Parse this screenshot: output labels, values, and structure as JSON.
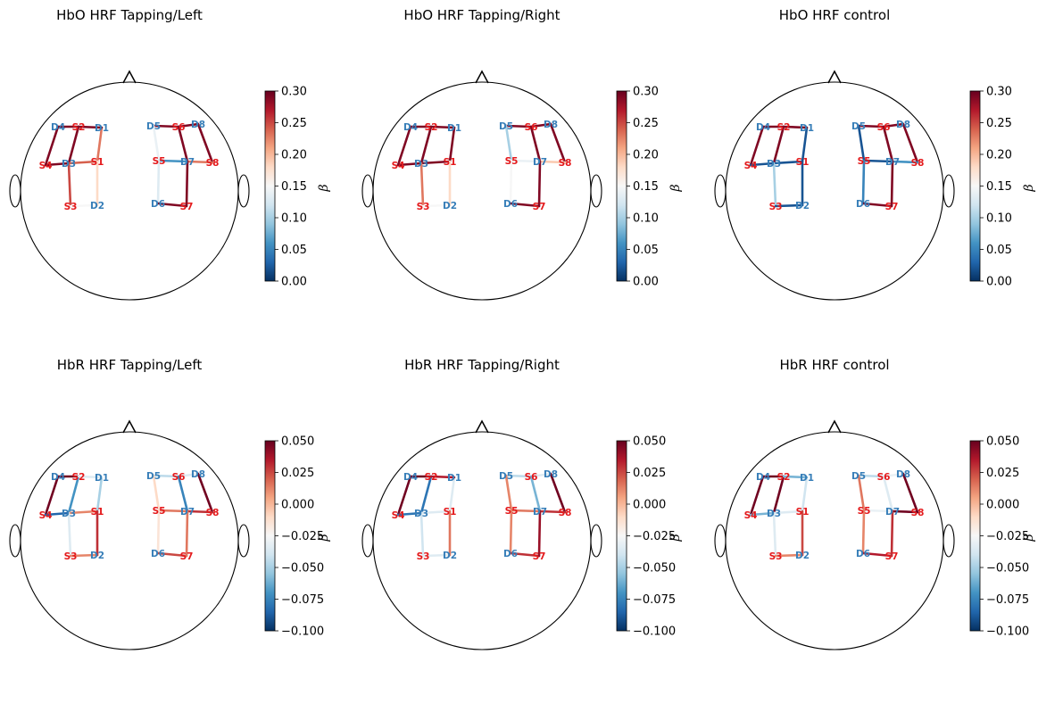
{
  "colors": {
    "source": "#e41a1c",
    "detector": "#377eb8",
    "outline": "#000000"
  },
  "colormap": {
    "name": "RdBu_r",
    "stops": [
      "#053061",
      "#2166ac",
      "#4393c3",
      "#92c5de",
      "#d1e5f0",
      "#f7f7f7",
      "#fddbc7",
      "#f4a582",
      "#d6604d",
      "#b2182b",
      "#67001f"
    ]
  },
  "optode_names": {
    "S1": "S1",
    "S2": "S2",
    "S3": "S3",
    "S4": "S4",
    "S5": "S5",
    "S6": "S6",
    "S7": "S7",
    "S8": "S8",
    "D1": "D1",
    "D2": "D2",
    "D3": "D3",
    "D4": "D4",
    "D5": "D5",
    "D6": "D6",
    "D7": "D7",
    "D8": "D8"
  },
  "chart_data": [
    {
      "type": "topomap",
      "title": "HbO HRF Tapping/Left",
      "colorbar": {
        "label": "β",
        "range": [
          0.0,
          0.3
        ],
        "ticks": [
          "0.00",
          "0.05",
          "0.10",
          "0.15",
          "0.20",
          "0.25",
          "0.30"
        ]
      },
      "channels": [
        {
          "pair": [
            "S2",
            "D4"
          ],
          "value": 0.29
        },
        {
          "pair": [
            "S4",
            "D4"
          ],
          "value": 0.29
        },
        {
          "pair": [
            "S2",
            "D3"
          ],
          "value": 0.29
        },
        {
          "pair": [
            "S4",
            "D3"
          ],
          "value": 0.29
        },
        {
          "pair": [
            "S1",
            "D3"
          ],
          "value": 0.24
        },
        {
          "pair": [
            "S1",
            "D1"
          ],
          "value": 0.23
        },
        {
          "pair": [
            "S2",
            "D1"
          ],
          "value": 0.29
        },
        {
          "pair": [
            "S3",
            "D3"
          ],
          "value": 0.25
        },
        {
          "pair": [
            "S3",
            "D2"
          ],
          "value": 0.15
        },
        {
          "pair": [
            "S1",
            "D2"
          ],
          "value": 0.18
        },
        {
          "pair": [
            "S6",
            "D5"
          ],
          "value": 0.29
        },
        {
          "pair": [
            "S6",
            "D8"
          ],
          "value": 0.29
        },
        {
          "pair": [
            "S6",
            "D7"
          ],
          "value": 0.29
        },
        {
          "pair": [
            "S5",
            "D5"
          ],
          "value": 0.14
        },
        {
          "pair": [
            "S5",
            "D7"
          ],
          "value": 0.06
        },
        {
          "pair": [
            "S8",
            "D8"
          ],
          "value": 0.29
        },
        {
          "pair": [
            "S8",
            "D7"
          ],
          "value": 0.23
        },
        {
          "pair": [
            "S5",
            "D6"
          ],
          "value": 0.13
        },
        {
          "pair": [
            "S7",
            "D6"
          ],
          "value": 0.29
        },
        {
          "pair": [
            "S7",
            "D7"
          ],
          "value": 0.29
        }
      ]
    },
    {
      "type": "topomap",
      "title": "HbO HRF Tapping/Right",
      "colorbar": {
        "label": "β",
        "range": [
          0.0,
          0.3
        ],
        "ticks": [
          "0.00",
          "0.05",
          "0.10",
          "0.15",
          "0.20",
          "0.25",
          "0.30"
        ]
      },
      "channels": [
        {
          "pair": [
            "S2",
            "D4"
          ],
          "value": 0.29
        },
        {
          "pair": [
            "S4",
            "D4"
          ],
          "value": 0.29
        },
        {
          "pair": [
            "S2",
            "D3"
          ],
          "value": 0.29
        },
        {
          "pair": [
            "S4",
            "D3"
          ],
          "value": 0.29
        },
        {
          "pair": [
            "S1",
            "D3"
          ],
          "value": 0.29
        },
        {
          "pair": [
            "S1",
            "D1"
          ],
          "value": 0.29
        },
        {
          "pair": [
            "S2",
            "D1"
          ],
          "value": 0.29
        },
        {
          "pair": [
            "S3",
            "D3"
          ],
          "value": 0.23
        },
        {
          "pair": [
            "S3",
            "D2"
          ],
          "value": 0.15
        },
        {
          "pair": [
            "S1",
            "D2"
          ],
          "value": 0.18
        },
        {
          "pair": [
            "S6",
            "D5"
          ],
          "value": 0.29
        },
        {
          "pair": [
            "S6",
            "D8"
          ],
          "value": 0.29
        },
        {
          "pair": [
            "S6",
            "D7"
          ],
          "value": 0.29
        },
        {
          "pair": [
            "S5",
            "D5"
          ],
          "value": 0.1
        },
        {
          "pair": [
            "S5",
            "D7"
          ],
          "value": 0.14
        },
        {
          "pair": [
            "S8",
            "D8"
          ],
          "value": 0.29
        },
        {
          "pair": [
            "S8",
            "D7"
          ],
          "value": 0.19
        },
        {
          "pair": [
            "S5",
            "D6"
          ],
          "value": 0.15
        },
        {
          "pair": [
            "S7",
            "D6"
          ],
          "value": 0.29
        },
        {
          "pair": [
            "S7",
            "D7"
          ],
          "value": 0.29
        }
      ]
    },
    {
      "type": "topomap",
      "title": "HbO HRF control",
      "colorbar": {
        "label": "β",
        "range": [
          0.0,
          0.3
        ],
        "ticks": [
          "0.00",
          "0.05",
          "0.10",
          "0.15",
          "0.20",
          "0.25",
          "0.30"
        ]
      },
      "channels": [
        {
          "pair": [
            "S2",
            "D4"
          ],
          "value": 0.29
        },
        {
          "pair": [
            "S4",
            "D4"
          ],
          "value": 0.29
        },
        {
          "pair": [
            "S2",
            "D3"
          ],
          "value": 0.29
        },
        {
          "pair": [
            "S4",
            "D3"
          ],
          "value": 0.02
        },
        {
          "pair": [
            "S1",
            "D3"
          ],
          "value": 0.02
        },
        {
          "pair": [
            "S1",
            "D1"
          ],
          "value": 0.02
        },
        {
          "pair": [
            "S2",
            "D1"
          ],
          "value": 0.29
        },
        {
          "pair": [
            "S3",
            "D3"
          ],
          "value": 0.1
        },
        {
          "pair": [
            "S3",
            "D2"
          ],
          "value": 0.02
        },
        {
          "pair": [
            "S1",
            "D2"
          ],
          "value": 0.02
        },
        {
          "pair": [
            "S6",
            "D5"
          ],
          "value": 0.29
        },
        {
          "pair": [
            "S6",
            "D8"
          ],
          "value": 0.29
        },
        {
          "pair": [
            "S6",
            "D7"
          ],
          "value": 0.29
        },
        {
          "pair": [
            "S5",
            "D5"
          ],
          "value": 0.02
        },
        {
          "pair": [
            "S5",
            "D7"
          ],
          "value": 0.02
        },
        {
          "pair": [
            "S8",
            "D8"
          ],
          "value": 0.29
        },
        {
          "pair": [
            "S8",
            "D7"
          ],
          "value": 0.06
        },
        {
          "pair": [
            "S5",
            "D6"
          ],
          "value": 0.05
        },
        {
          "pair": [
            "S7",
            "D6"
          ],
          "value": 0.29
        },
        {
          "pair": [
            "S7",
            "D7"
          ],
          "value": 0.29
        }
      ]
    },
    {
      "type": "topomap",
      "title": "HbR HRF Tapping/Left",
      "colorbar": {
        "label": "β",
        "range": [
          -0.1,
          0.05
        ],
        "ticks": [
          "−0.100",
          "−0.075",
          "−0.050",
          "−0.025",
          "0.000",
          "0.025",
          "0.050"
        ]
      },
      "channels": [
        {
          "pair": [
            "S2",
            "D4"
          ],
          "value": 0.048
        },
        {
          "pair": [
            "S4",
            "D4"
          ],
          "value": 0.048
        },
        {
          "pair": [
            "S2",
            "D3"
          ],
          "value": -0.07
        },
        {
          "pair": [
            "S4",
            "D3"
          ],
          "value": -0.085
        },
        {
          "pair": [
            "S1",
            "D3"
          ],
          "value": 0.012
        },
        {
          "pair": [
            "S1",
            "D1"
          ],
          "value": -0.05
        },
        {
          "pair": [
            "S2",
            "D1"
          ],
          "value": -0.035
        },
        {
          "pair": [
            "S3",
            "D3"
          ],
          "value": -0.035
        },
        {
          "pair": [
            "S3",
            "D2"
          ],
          "value": 0.012
        },
        {
          "pair": [
            "S1",
            "D2"
          ],
          "value": 0.03
        },
        {
          "pair": [
            "S6",
            "D5"
          ],
          "value": -0.045
        },
        {
          "pair": [
            "S6",
            "D8"
          ],
          "value": -0.035
        },
        {
          "pair": [
            "S6",
            "D7"
          ],
          "value": -0.075
        },
        {
          "pair": [
            "S5",
            "D5"
          ],
          "value": -0.01
        },
        {
          "pair": [
            "S5",
            "D7"
          ],
          "value": 0.015
        },
        {
          "pair": [
            "S8",
            "D8"
          ],
          "value": 0.048
        },
        {
          "pair": [
            "S8",
            "D7"
          ],
          "value": 0.03
        },
        {
          "pair": [
            "S5",
            "D6"
          ],
          "value": -0.015
        },
        {
          "pair": [
            "S7",
            "D6"
          ],
          "value": 0.025
        },
        {
          "pair": [
            "S7",
            "D7"
          ],
          "value": 0.015
        }
      ]
    },
    {
      "type": "topomap",
      "title": "HbR HRF Tapping/Right",
      "colorbar": {
        "label": "β",
        "range": [
          -0.1,
          0.05
        ],
        "ticks": [
          "−0.100",
          "−0.075",
          "−0.050",
          "−0.025",
          "0.000",
          "0.025",
          "0.050"
        ]
      },
      "channels": [
        {
          "pair": [
            "S2",
            "D4"
          ],
          "value": 0.048
        },
        {
          "pair": [
            "S4",
            "D4"
          ],
          "value": 0.048
        },
        {
          "pair": [
            "S2",
            "D3"
          ],
          "value": -0.08
        },
        {
          "pair": [
            "S4",
            "D3"
          ],
          "value": -0.08
        },
        {
          "pair": [
            "S1",
            "D3"
          ],
          "value": -0.035
        },
        {
          "pair": [
            "S1",
            "D1"
          ],
          "value": -0.035
        },
        {
          "pair": [
            "S2",
            "D1"
          ],
          "value": 0.035
        },
        {
          "pair": [
            "S3",
            "D3"
          ],
          "value": -0.04
        },
        {
          "pair": [
            "S3",
            "D2"
          ],
          "value": -0.035
        },
        {
          "pair": [
            "S1",
            "D2"
          ],
          "value": 0.015
        },
        {
          "pair": [
            "S6",
            "D5"
          ],
          "value": -0.045
        },
        {
          "pair": [
            "S6",
            "D8"
          ],
          "value": -0.035
        },
        {
          "pair": [
            "S6",
            "D7"
          ],
          "value": -0.06
        },
        {
          "pair": [
            "S5",
            "D5"
          ],
          "value": 0.012
        },
        {
          "pair": [
            "S5",
            "D7"
          ],
          "value": 0.015
        },
        {
          "pair": [
            "S8",
            "D8"
          ],
          "value": 0.048
        },
        {
          "pair": [
            "S8",
            "D7"
          ],
          "value": 0.03
        },
        {
          "pair": [
            "S5",
            "D6"
          ],
          "value": 0.012
        },
        {
          "pair": [
            "S7",
            "D6"
          ],
          "value": 0.03
        },
        {
          "pair": [
            "S7",
            "D7"
          ],
          "value": 0.04
        }
      ]
    },
    {
      "type": "topomap",
      "title": "HbR HRF control",
      "colorbar": {
        "label": "β",
        "range": [
          -0.1,
          0.05
        ],
        "ticks": [
          "−0.100",
          "−0.075",
          "−0.050",
          "−0.025",
          "0.000",
          "0.025",
          "0.050"
        ]
      },
      "channels": [
        {
          "pair": [
            "S2",
            "D4"
          ],
          "value": 0.048
        },
        {
          "pair": [
            "S4",
            "D4"
          ],
          "value": 0.048
        },
        {
          "pair": [
            "S2",
            "D3"
          ],
          "value": 0.048
        },
        {
          "pair": [
            "S4",
            "D3"
          ],
          "value": -0.06
        },
        {
          "pair": [
            "S1",
            "D3"
          ],
          "value": -0.035
        },
        {
          "pair": [
            "S1",
            "D1"
          ],
          "value": -0.04
        },
        {
          "pair": [
            "S2",
            "D1"
          ],
          "value": -0.06
        },
        {
          "pair": [
            "S3",
            "D3"
          ],
          "value": -0.035
        },
        {
          "pair": [
            "S3",
            "D2"
          ],
          "value": 0.012
        },
        {
          "pair": [
            "S1",
            "D2"
          ],
          "value": 0.025
        },
        {
          "pair": [
            "S6",
            "D5"
          ],
          "value": -0.045
        },
        {
          "pair": [
            "S6",
            "D8"
          ],
          "value": -0.03
        },
        {
          "pair": [
            "S6",
            "D7"
          ],
          "value": -0.035
        },
        {
          "pair": [
            "S5",
            "D5"
          ],
          "value": 0.015
        },
        {
          "pair": [
            "S5",
            "D7"
          ],
          "value": -0.03
        },
        {
          "pair": [
            "S8",
            "D8"
          ],
          "value": 0.048
        },
        {
          "pair": [
            "S8",
            "D7"
          ],
          "value": 0.048
        },
        {
          "pair": [
            "S5",
            "D6"
          ],
          "value": 0.012
        },
        {
          "pair": [
            "S7",
            "D6"
          ],
          "value": 0.035
        },
        {
          "pair": [
            "S7",
            "D7"
          ],
          "value": 0.03
        }
      ]
    }
  ]
}
